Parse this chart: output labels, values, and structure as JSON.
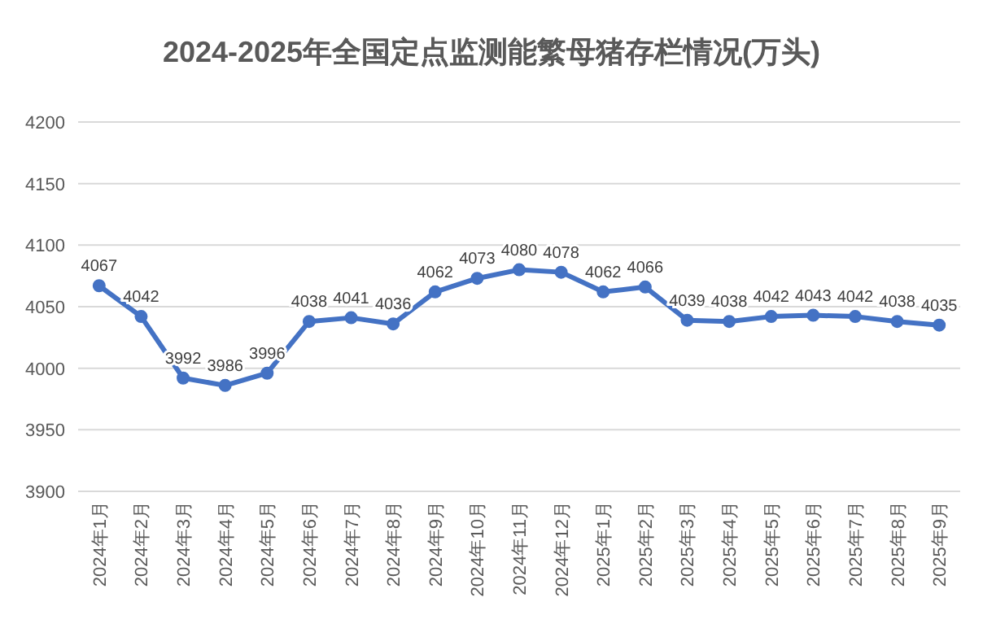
{
  "chart_data": {
    "type": "line",
    "title": "2024-2025年全国定点监测能繁母猪存栏情况(万头)",
    "categories": [
      "2024年1月",
      "2024年2月",
      "2024年3月",
      "2024年4月",
      "2024年5月",
      "2024年6月",
      "2024年7月",
      "2024年8月",
      "2024年9月",
      "2024年10月",
      "2024年11月",
      "2024年12月",
      "2025年1月",
      "2025年2月",
      "2025年3月",
      "2025年4月",
      "2025年5月",
      "2025年6月",
      "2025年7月",
      "2025年8月",
      "2025年9月"
    ],
    "series": [
      {
        "color": "#4472c4",
        "values": [
          4067,
          4042,
          3992,
          3986,
          3996,
          4038,
          4041,
          4036,
          4062,
          4073,
          4080,
          4078,
          4062,
          4066,
          4039,
          4038,
          4042,
          4043,
          4042,
          4038,
          4035
        ]
      }
    ],
    "ylim": [
      3900,
      4200
    ],
    "yticks": [
      3900,
      3950,
      4000,
      4050,
      4100,
      4150,
      4200
    ],
    "grid": "y",
    "marker": "circle",
    "line_style": "solid",
    "data_labels": true
  }
}
